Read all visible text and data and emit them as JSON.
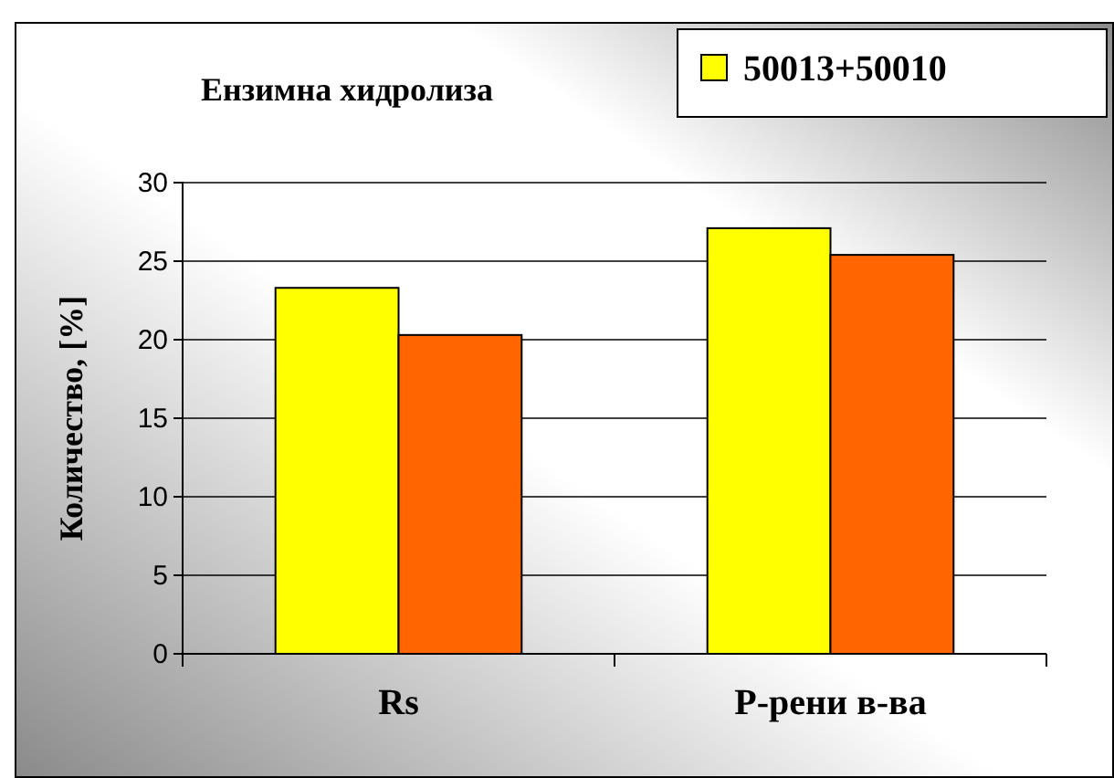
{
  "chart_data": {
    "type": "bar",
    "title": "Ензимна хидролиза",
    "ylabel": "Количество, [%]",
    "categories": [
      "Rs",
      "P-рени в-ва"
    ],
    "series": [
      {
        "name": "50013+50010",
        "color": "#ffff00",
        "values": [
          23.3,
          27.1
        ]
      },
      {
        "color": "#ff6600",
        "values": [
          20.3,
          25.4
        ]
      }
    ],
    "ylim": [
      0,
      30
    ],
    "yticks": [
      0,
      5,
      10,
      15,
      20,
      25,
      30
    ],
    "grid": "y",
    "legend": "top right"
  }
}
